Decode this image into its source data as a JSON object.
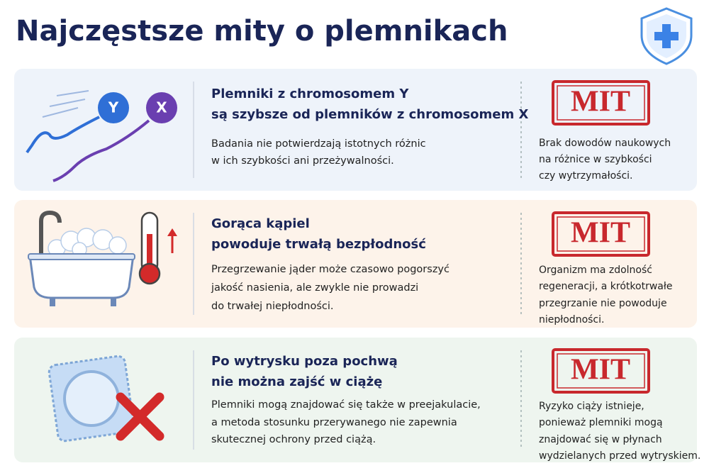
{
  "title": "Najczęstsze mity o plemnikach",
  "rows": [
    {
      "icon_labels": [
        "Y",
        "X"
      ],
      "heading": [
        "Plemniki z chromosomem Y",
        "są szybsze od plemników z chromosomem X"
      ],
      "body": [
        "Badania nie potwierdzają istotnych różnic",
        "w ich szybkości ani przeżywalności."
      ],
      "stamp": "MIT",
      "verdict": [
        "Brak dowodów naukowych",
        "na różnice w szybkości",
        "czy wytrzymałości."
      ]
    },
    {
      "heading": [
        "Gorąca kąpiel",
        "powoduje trwałą bezpłodność"
      ],
      "body": [
        "Przegrzewanie jąder może czasowo pogorszyć",
        "jakość nasienia,  ale zwykle nie prowadzi",
        "do trwałej niepłodności."
      ],
      "stamp": "MIT",
      "verdict": [
        "Organizm ma zdolność",
        "regeneracji, a krótkotrwałe",
        "przegrzanie nie powoduje",
        "niepłodności."
      ]
    },
    {
      "heading": [
        "Po wytrysku poza pochwą",
        "nie można zajść w ciążę"
      ],
      "body": [
        "Plemniki mogą znajdować się także w preejakulacie,",
        "a metoda stosunku przerywanego nie zapewnia",
        "skutecznej ochrony przed ciążą."
      ],
      "stamp": "MIT",
      "verdict": [
        "Ryzyko ciąży istnieje,",
        "ponieważ plemniki mogą",
        "znajdować się w płynach",
        "wydzielanych przed wytryskiem."
      ]
    }
  ]
}
